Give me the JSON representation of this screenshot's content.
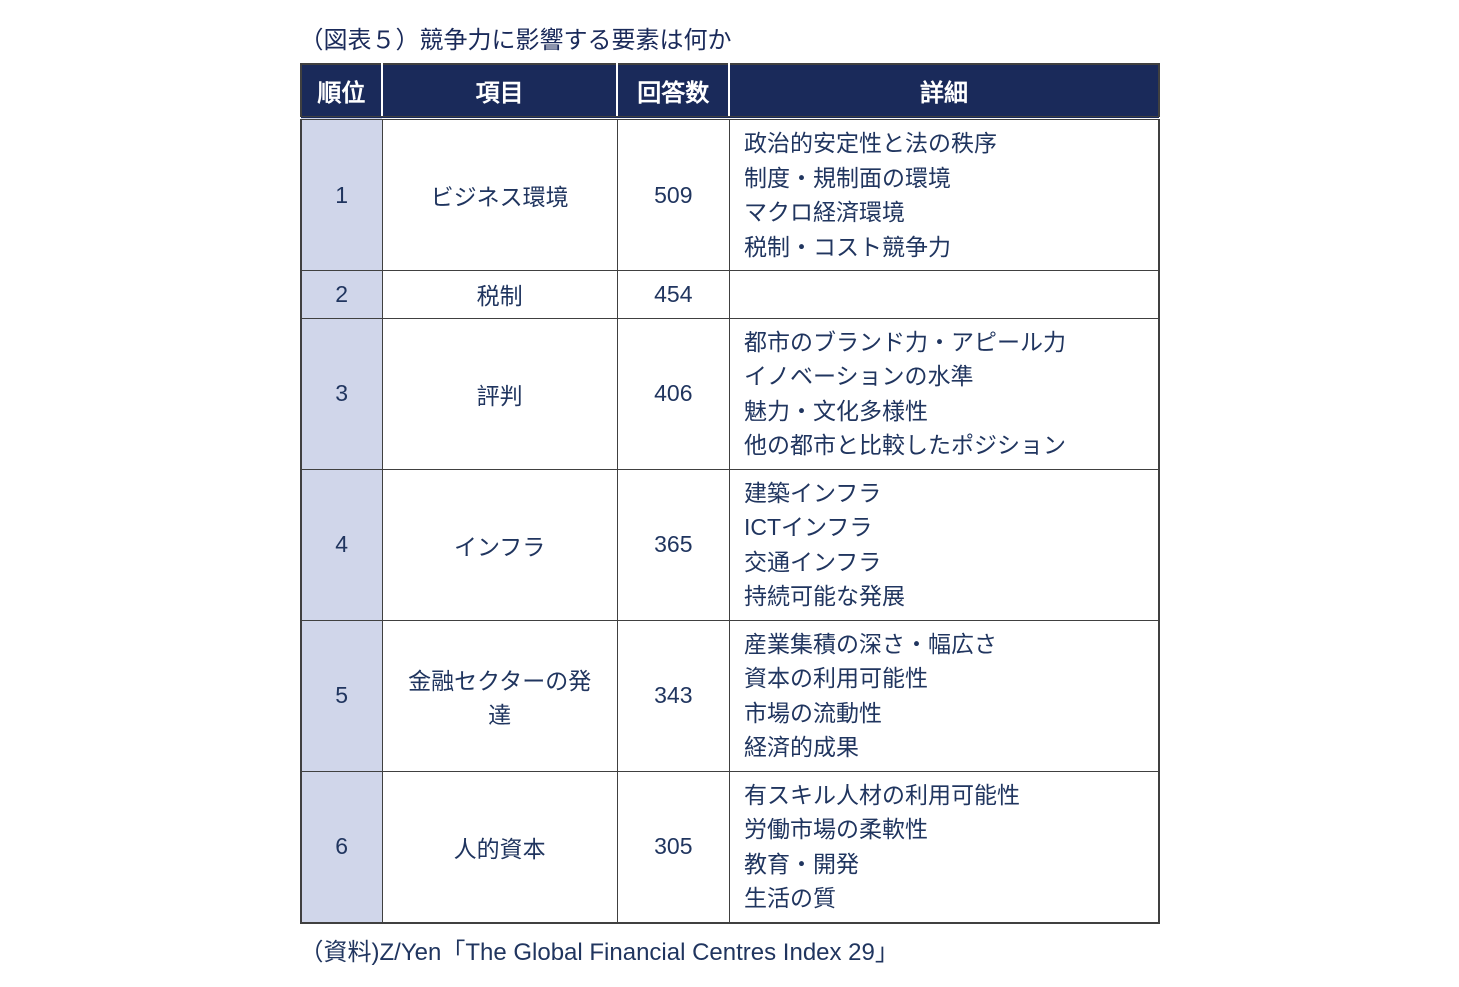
{
  "title": "（図表５）競争力に影響する要素は何か",
  "source": "（資料)Z/Yen「The Global Financial Centres Index 29」",
  "columns": [
    "順位",
    "項目",
    "回答数",
    "詳細"
  ],
  "header_bg": "#1a2a5a",
  "header_fg": "#ffffff",
  "rank_bg": "#d0d6ea",
  "text_color": "#20355f",
  "border_color": "#404040",
  "rows": [
    {
      "rank": "1",
      "item": "ビジネス環境",
      "count": "509",
      "details": [
        "政治的安定性と法の秩序",
        "制度・規制面の環境",
        "マクロ経済環境",
        "税制・コスト競争力"
      ]
    },
    {
      "rank": "2",
      "item": "税制",
      "count": "454",
      "details": []
    },
    {
      "rank": "3",
      "item": "評判",
      "count": "406",
      "details": [
        "都市のブランド力・アピール力",
        "イノベーションの水準",
        "魅力・文化多様性",
        "他の都市と比較したポジション"
      ]
    },
    {
      "rank": "4",
      "item": "インフラ",
      "count": "365",
      "details": [
        "建築インフラ",
        "ICTインフラ",
        "交通インフラ",
        "持続可能な発展"
      ]
    },
    {
      "rank": "5",
      "item": "金融セクターの発達",
      "count": "343",
      "details": [
        "産業集積の深さ・幅広さ",
        "資本の利用可能性",
        "市場の流動性",
        "経済的成果"
      ]
    },
    {
      "rank": "6",
      "item": "人的資本",
      "count": "305",
      "details": [
        "有スキル人材の利用可能性",
        "労働市場の柔軟性",
        "教育・開発",
        "生活の質"
      ]
    }
  ]
}
